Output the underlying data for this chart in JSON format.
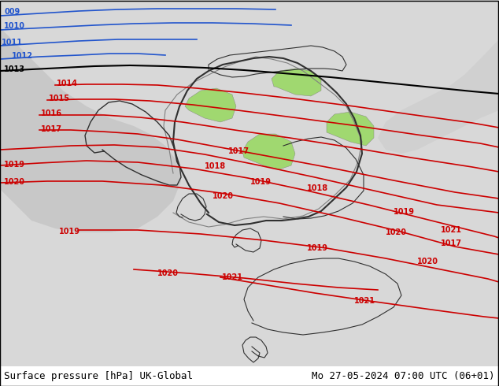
{
  "title_left": "Surface pressure [hPa] UK-Global",
  "title_right": "Mo 27-05-2024 07:00 UTC (06+01)",
  "bg_color_land_light": "#c8f0a0",
  "bg_color_land_dark": "#a8d878",
  "bg_color_sea": "#d8d8d8",
  "border_color": "#808080",
  "isobar_color_red": "#cc0000",
  "isobar_color_blue": "#0055cc",
  "isobar_color_black": "#000000",
  "label_color_red": "#cc0000",
  "label_color_blue": "#0055cc",
  "label_color_black": "#000000",
  "font_size_labels": 8,
  "font_size_title": 9,
  "figsize": [
    6.34,
    4.9
  ],
  "dpi": 100
}
